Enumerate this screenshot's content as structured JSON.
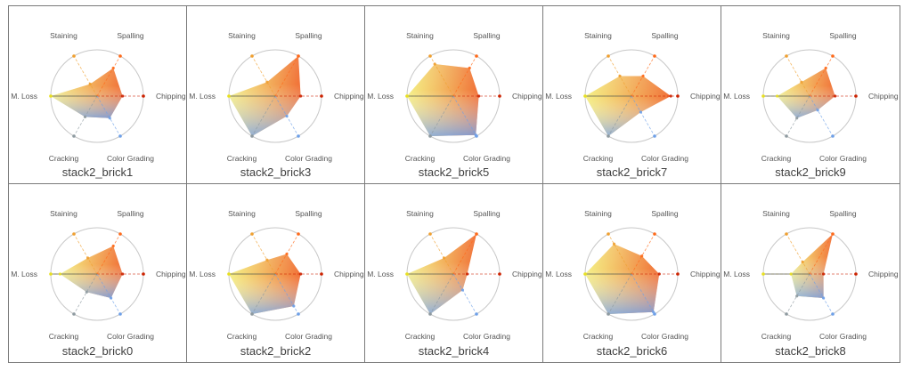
{
  "chart_data": {
    "type": "radar",
    "axes": [
      "Chipping",
      "Color Grading",
      "Cracking",
      "M. Loss",
      "Staining",
      "Spalling"
    ],
    "axis_colors": [
      "#cc2200",
      "#6ea0e8",
      "#8e9aa0",
      "#e8e020",
      "#f0a030",
      "#ff6a1a"
    ],
    "rlim": [
      0,
      1
    ],
    "fill_gradient": {
      "top_right": "#ee5511",
      "left": "#f0e84a",
      "bottom_right": "#6f9fe8"
    },
    "charts": [
      {
        "title": "stack2_brick1",
        "values": [
          0.55,
          0.55,
          0.52,
          1.0,
          0.3,
          0.7
        ]
      },
      {
        "title": "stack2_brick3",
        "values": [
          0.55,
          0.5,
          1.0,
          1.0,
          0.35,
          1.0
        ]
      },
      {
        "title": "stack2_brick5",
        "values": [
          0.55,
          0.97,
          1.0,
          1.0,
          0.8,
          0.7
        ]
      },
      {
        "title": "stack2_brick7",
        "values": [
          0.85,
          0.4,
          1.0,
          1.0,
          0.5,
          0.5
        ]
      },
      {
        "title": "stack2_brick9",
        "values": [
          0.55,
          0.35,
          0.55,
          0.7,
          0.35,
          0.7
        ]
      },
      {
        "title": "stack2_brick0",
        "values": [
          0.55,
          0.6,
          0.45,
          0.8,
          0.4,
          0.7
        ]
      },
      {
        "title": "stack2_brick2",
        "values": [
          0.55,
          0.8,
          1.0,
          1.0,
          0.35,
          0.5
        ]
      },
      {
        "title": "stack2_brick4",
        "values": [
          0.3,
          0.4,
          1.0,
          1.0,
          0.4,
          1.0
        ]
      },
      {
        "title": "stack2_brick6",
        "values": [
          0.6,
          0.95,
          1.0,
          1.0,
          0.75,
          0.45
        ]
      },
      {
        "title": "stack2_brick8",
        "values": [
          0.3,
          0.6,
          0.55,
          0.4,
          0.3,
          1.0
        ]
      }
    ]
  }
}
